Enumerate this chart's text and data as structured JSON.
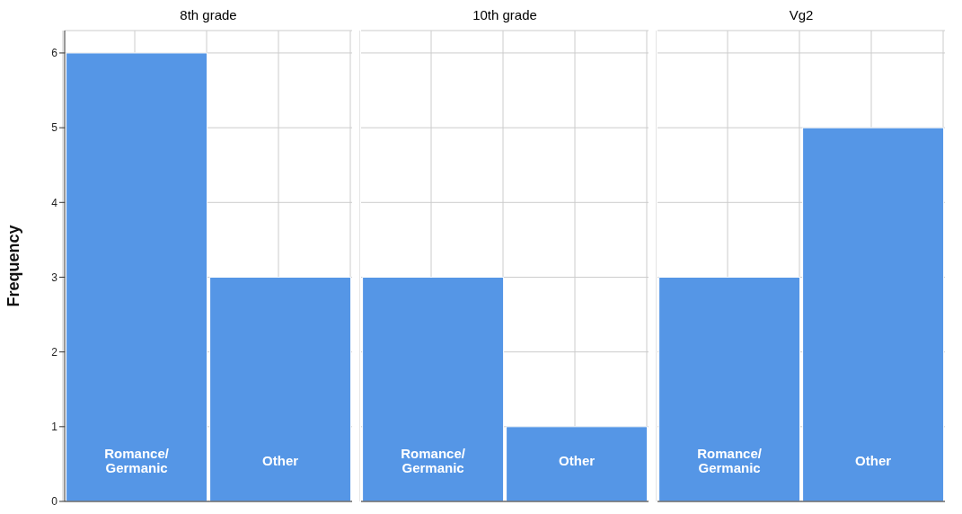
{
  "chart_data": [
    {
      "type": "bar",
      "title": "8th grade",
      "ylabel": "Frequency",
      "categories": [
        "Romance/Germanic",
        "Other"
      ],
      "values": [
        6,
        3
      ],
      "color": "#5596e6",
      "ylim": [
        0,
        6.3
      ],
      "yticks": [
        0,
        1,
        2,
        3,
        4,
        5,
        6
      ],
      "grid": true
    },
    {
      "type": "bar",
      "title": "10th grade",
      "categories": [
        "Romance/Germanic",
        "Other"
      ],
      "values": [
        3,
        1
      ],
      "color": "#5596e6",
      "ylim": [
        0,
        6.3
      ],
      "yticks": [
        0,
        1,
        2,
        3,
        4,
        5,
        6
      ],
      "grid": true,
      "tick_labels": "x"
    },
    {
      "type": "bar",
      "title": "Vg2",
      "categories": [
        "Romance/Germanic",
        "Other"
      ],
      "values": [
        3,
        5
      ],
      "color": "#5596e6",
      "ylim": [
        0,
        6.3
      ],
      "yticks": [
        0,
        1,
        2,
        3,
        4,
        5,
        6
      ],
      "grid": true,
      "tick_labels": "x"
    }
  ]
}
